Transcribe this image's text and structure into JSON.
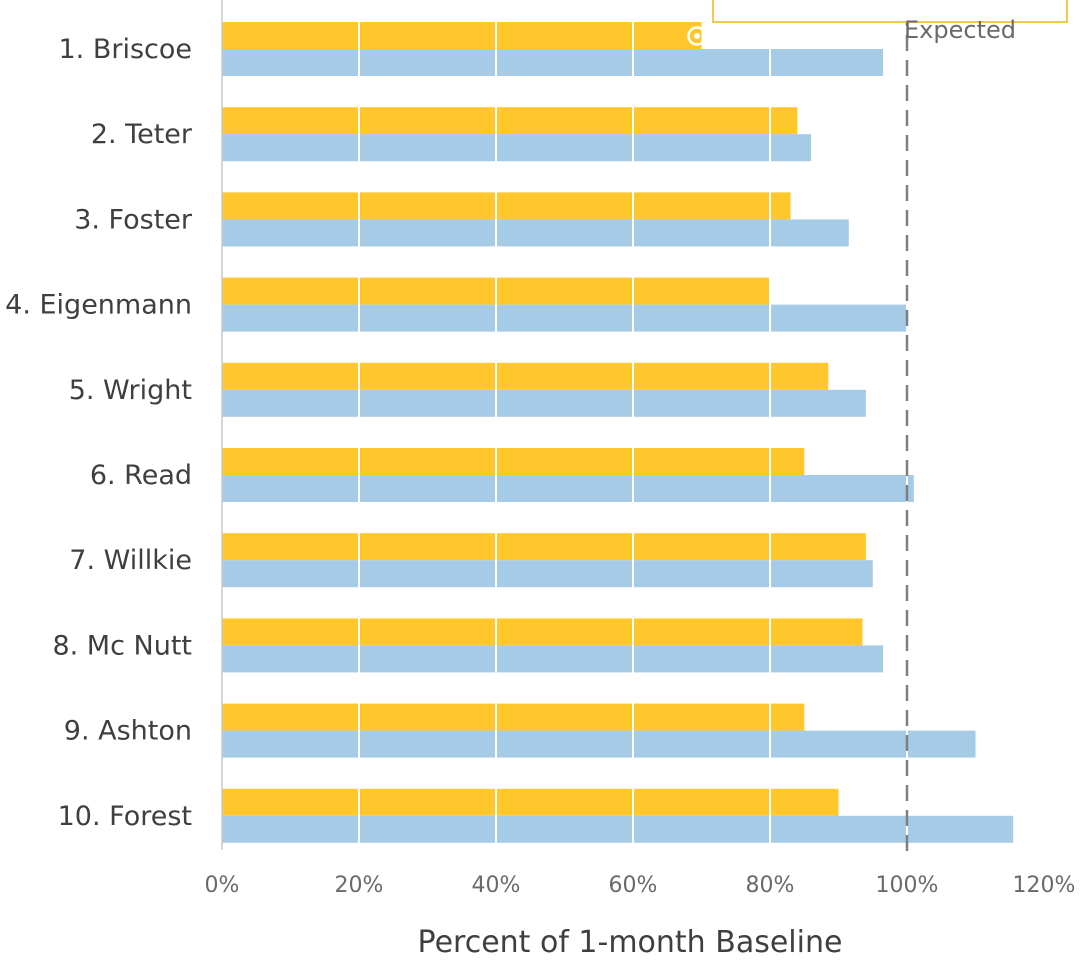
{
  "chart_data": {
    "type": "bar",
    "orientation": "horizontal",
    "categories": [
      "1. Briscoe",
      "2. Teter",
      "3. Foster",
      "4. Eigenmann",
      "5. Wright",
      "6. Read",
      "7. Willkie",
      "8. Mc Nutt",
      "9. Ashton",
      "10. Forest"
    ],
    "series": [
      {
        "color": "#ffc72c",
        "values": [
          70,
          84,
          83,
          80,
          88.5,
          85,
          94,
          93.5,
          85,
          90
        ]
      },
      {
        "color": "#a6cbe6",
        "values": [
          96.5,
          86,
          91.5,
          100,
          94,
          101,
          95,
          96.5,
          110,
          115.5
        ]
      }
    ],
    "xlim": [
      0,
      120
    ],
    "xticks": [
      "0%",
      "20%",
      "40%",
      "60%",
      "80%",
      "100%",
      "120%"
    ],
    "xlabel": "Percent of 1-month Baseline",
    "grid": true,
    "reference_line": {
      "value": 100,
      "label": "Expected",
      "color": "#7f7f7f"
    }
  }
}
